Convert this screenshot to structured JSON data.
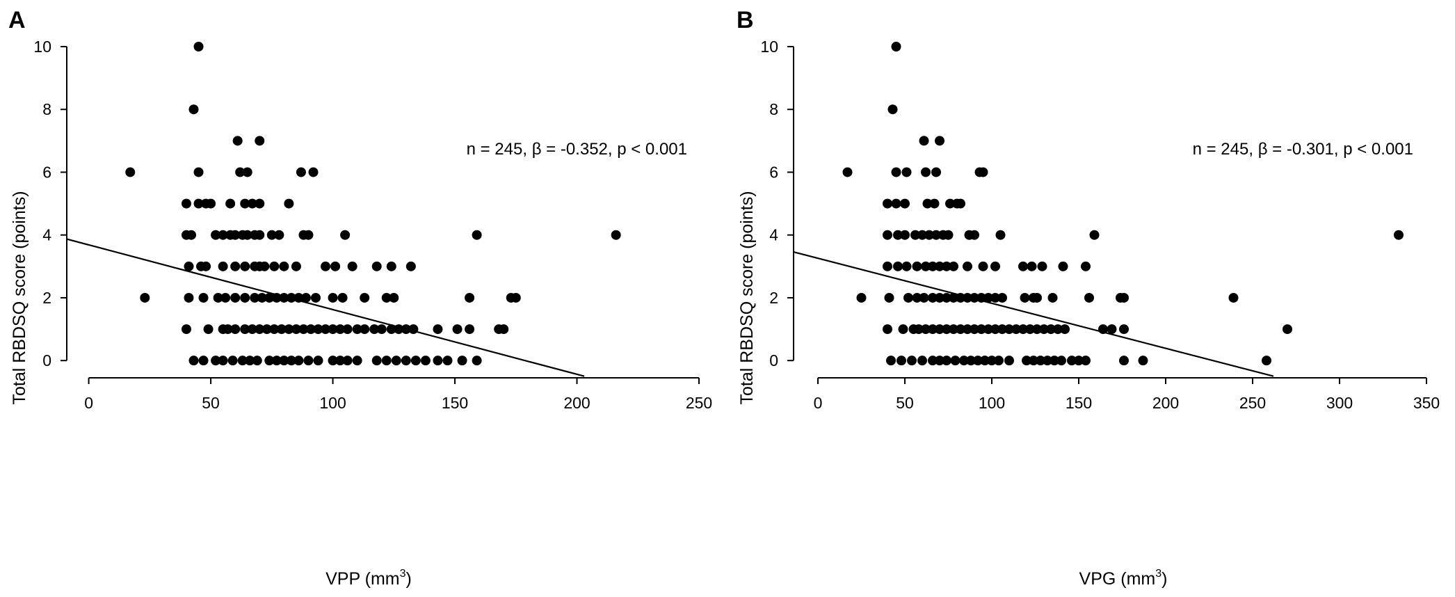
{
  "chart_data": [
    {
      "panel": "A",
      "type": "scatter",
      "xlabel": "VPP (mm",
      "xlabel_sup": "3",
      "xlabel_end": ")",
      "ylabel": "Total RBDSQ score (points)",
      "annotation": "n = 245, β = -0.352, p < 0.001",
      "xlim": [
        -9,
        250
      ],
      "ylim": [
        -0.55,
        10
      ],
      "xticks": [
        0,
        50,
        100,
        150,
        200,
        250
      ],
      "yticks": [
        0,
        2,
        4,
        6,
        8,
        10
      ],
      "fit_line": {
        "x0": -9,
        "y0": 3.87,
        "x1": 203,
        "y1": -0.5
      },
      "points": [
        [
          45,
          10
        ],
        [
          43,
          8
        ],
        [
          61,
          7
        ],
        [
          70,
          7
        ],
        [
          17,
          6
        ],
        [
          45,
          6
        ],
        [
          62,
          6
        ],
        [
          65,
          6
        ],
        [
          87,
          6
        ],
        [
          92,
          6
        ],
        [
          40,
          5
        ],
        [
          45,
          5
        ],
        [
          48,
          5
        ],
        [
          50,
          5
        ],
        [
          58,
          5
        ],
        [
          64,
          5
        ],
        [
          67,
          5
        ],
        [
          70,
          5
        ],
        [
          82,
          5
        ],
        [
          40,
          4
        ],
        [
          42,
          4
        ],
        [
          52,
          4
        ],
        [
          55,
          4
        ],
        [
          58,
          4
        ],
        [
          60,
          4
        ],
        [
          63,
          4
        ],
        [
          65,
          4
        ],
        [
          68,
          4
        ],
        [
          70,
          4
        ],
        [
          75,
          4
        ],
        [
          78,
          4
        ],
        [
          88,
          4
        ],
        [
          90,
          4
        ],
        [
          105,
          4
        ],
        [
          159,
          4
        ],
        [
          216,
          4
        ],
        [
          41,
          3
        ],
        [
          46,
          3
        ],
        [
          48,
          3
        ],
        [
          55,
          3
        ],
        [
          60,
          3
        ],
        [
          64,
          3
        ],
        [
          68,
          3
        ],
        [
          70,
          3
        ],
        [
          72,
          3
        ],
        [
          76,
          3
        ],
        [
          80,
          3
        ],
        [
          85,
          3
        ],
        [
          97,
          3
        ],
        [
          101,
          3
        ],
        [
          108,
          3
        ],
        [
          118,
          3
        ],
        [
          124,
          3
        ],
        [
          132,
          3
        ],
        [
          23,
          2
        ],
        [
          41,
          2
        ],
        [
          47,
          2
        ],
        [
          53,
          2
        ],
        [
          56,
          2
        ],
        [
          60,
          2
        ],
        [
          64,
          2
        ],
        [
          68,
          2
        ],
        [
          71,
          2
        ],
        [
          74,
          2
        ],
        [
          77,
          2
        ],
        [
          80,
          2
        ],
        [
          83,
          2
        ],
        [
          86,
          2
        ],
        [
          89,
          2
        ],
        [
          93,
          2
        ],
        [
          100,
          2
        ],
        [
          104,
          2
        ],
        [
          113,
          2
        ],
        [
          122,
          2
        ],
        [
          125,
          2
        ],
        [
          156,
          2
        ],
        [
          173,
          2
        ],
        [
          175,
          2
        ],
        [
          40,
          1
        ],
        [
          49,
          1
        ],
        [
          55,
          1
        ],
        [
          57,
          1
        ],
        [
          60,
          1
        ],
        [
          64,
          1
        ],
        [
          67,
          1
        ],
        [
          70,
          1
        ],
        [
          73,
          1
        ],
        [
          76,
          1
        ],
        [
          79,
          1
        ],
        [
          82,
          1
        ],
        [
          85,
          1
        ],
        [
          88,
          1
        ],
        [
          91,
          1
        ],
        [
          94,
          1
        ],
        [
          97,
          1
        ],
        [
          100,
          1
        ],
        [
          103,
          1
        ],
        [
          106,
          1
        ],
        [
          110,
          1
        ],
        [
          113,
          1
        ],
        [
          117,
          1
        ],
        [
          120,
          1
        ],
        [
          124,
          1
        ],
        [
          127,
          1
        ],
        [
          130,
          1
        ],
        [
          133,
          1
        ],
        [
          143,
          1
        ],
        [
          151,
          1
        ],
        [
          156,
          1
        ],
        [
          168,
          1
        ],
        [
          170,
          1
        ],
        [
          43,
          0
        ],
        [
          47,
          0
        ],
        [
          52,
          0
        ],
        [
          55,
          0
        ],
        [
          59,
          0
        ],
        [
          63,
          0
        ],
        [
          66,
          0
        ],
        [
          69,
          0
        ],
        [
          74,
          0
        ],
        [
          77,
          0
        ],
        [
          80,
          0
        ],
        [
          83,
          0
        ],
        [
          86,
          0
        ],
        [
          90,
          0
        ],
        [
          94,
          0
        ],
        [
          100,
          0
        ],
        [
          103,
          0
        ],
        [
          106,
          0
        ],
        [
          110,
          0
        ],
        [
          118,
          0
        ],
        [
          122,
          0
        ],
        [
          126,
          0
        ],
        [
          130,
          0
        ],
        [
          134,
          0
        ],
        [
          138,
          0
        ],
        [
          143,
          0
        ],
        [
          147,
          0
        ],
        [
          153,
          0
        ],
        [
          159,
          0
        ]
      ]
    },
    {
      "panel": "B",
      "type": "scatter",
      "xlabel": "VPG (mm",
      "xlabel_sup": "3",
      "xlabel_end": ")",
      "ylabel": "Total RBDSQ score (points)",
      "annotation": "n = 245, β = -0.301, p < 0.001",
      "xlim": [
        -14,
        350
      ],
      "ylim": [
        -0.55,
        10
      ],
      "xticks": [
        0,
        50,
        100,
        150,
        200,
        250,
        300,
        350
      ],
      "yticks": [
        0,
        2,
        4,
        6,
        8,
        10
      ],
      "fit_line": {
        "x0": -14,
        "y0": 3.46,
        "x1": 262,
        "y1": -0.5
      },
      "points": [
        [
          45,
          10
        ],
        [
          43,
          8
        ],
        [
          61,
          7
        ],
        [
          70,
          7
        ],
        [
          17,
          6
        ],
        [
          45,
          6
        ],
        [
          51,
          6
        ],
        [
          62,
          6
        ],
        [
          68,
          6
        ],
        [
          93,
          6
        ],
        [
          95,
          6
        ],
        [
          40,
          5
        ],
        [
          45,
          5
        ],
        [
          50,
          5
        ],
        [
          63,
          5
        ],
        [
          67,
          5
        ],
        [
          76,
          5
        ],
        [
          80,
          5
        ],
        [
          82,
          5
        ],
        [
          40,
          4
        ],
        [
          46,
          4
        ],
        [
          50,
          4
        ],
        [
          56,
          4
        ],
        [
          60,
          4
        ],
        [
          64,
          4
        ],
        [
          68,
          4
        ],
        [
          72,
          4
        ],
        [
          75,
          4
        ],
        [
          87,
          4
        ],
        [
          90,
          4
        ],
        [
          105,
          4
        ],
        [
          159,
          4
        ],
        [
          334,
          4
        ],
        [
          40,
          3
        ],
        [
          46,
          3
        ],
        [
          51,
          3
        ],
        [
          57,
          3
        ],
        [
          62,
          3
        ],
        [
          66,
          3
        ],
        [
          70,
          3
        ],
        [
          74,
          3
        ],
        [
          78,
          3
        ],
        [
          86,
          3
        ],
        [
          95,
          3
        ],
        [
          102,
          3
        ],
        [
          118,
          3
        ],
        [
          123,
          3
        ],
        [
          129,
          3
        ],
        [
          141,
          3
        ],
        [
          154,
          3
        ],
        [
          25,
          2
        ],
        [
          41,
          2
        ],
        [
          52,
          2
        ],
        [
          57,
          2
        ],
        [
          61,
          2
        ],
        [
          66,
          2
        ],
        [
          70,
          2
        ],
        [
          74,
          2
        ],
        [
          78,
          2
        ],
        [
          82,
          2
        ],
        [
          86,
          2
        ],
        [
          90,
          2
        ],
        [
          94,
          2
        ],
        [
          98,
          2
        ],
        [
          102,
          2
        ],
        [
          106,
          2
        ],
        [
          119,
          2
        ],
        [
          124,
          2
        ],
        [
          126,
          2
        ],
        [
          135,
          2
        ],
        [
          156,
          2
        ],
        [
          174,
          2
        ],
        [
          176,
          2
        ],
        [
          239,
          2
        ],
        [
          40,
          1
        ],
        [
          49,
          1
        ],
        [
          55,
          1
        ],
        [
          58,
          1
        ],
        [
          62,
          1
        ],
        [
          66,
          1
        ],
        [
          70,
          1
        ],
        [
          74,
          1
        ],
        [
          78,
          1
        ],
        [
          82,
          1
        ],
        [
          86,
          1
        ],
        [
          90,
          1
        ],
        [
          94,
          1
        ],
        [
          98,
          1
        ],
        [
          102,
          1
        ],
        [
          106,
          1
        ],
        [
          110,
          1
        ],
        [
          114,
          1
        ],
        [
          118,
          1
        ],
        [
          122,
          1
        ],
        [
          126,
          1
        ],
        [
          130,
          1
        ],
        [
          134,
          1
        ],
        [
          138,
          1
        ],
        [
          142,
          1
        ],
        [
          164,
          1
        ],
        [
          169,
          1
        ],
        [
          176,
          1
        ],
        [
          270,
          1
        ],
        [
          42,
          0
        ],
        [
          48,
          0
        ],
        [
          54,
          0
        ],
        [
          60,
          0
        ],
        [
          66,
          0
        ],
        [
          70,
          0
        ],
        [
          74,
          0
        ],
        [
          79,
          0
        ],
        [
          84,
          0
        ],
        [
          88,
          0
        ],
        [
          92,
          0
        ],
        [
          96,
          0
        ],
        [
          100,
          0
        ],
        [
          104,
          0
        ],
        [
          110,
          0
        ],
        [
          120,
          0
        ],
        [
          124,
          0
        ],
        [
          128,
          0
        ],
        [
          132,
          0
        ],
        [
          136,
          0
        ],
        [
          140,
          0
        ],
        [
          146,
          0
        ],
        [
          150,
          0
        ],
        [
          154,
          0
        ],
        [
          176,
          0
        ],
        [
          187,
          0
        ],
        [
          258,
          0
        ]
      ]
    }
  ]
}
